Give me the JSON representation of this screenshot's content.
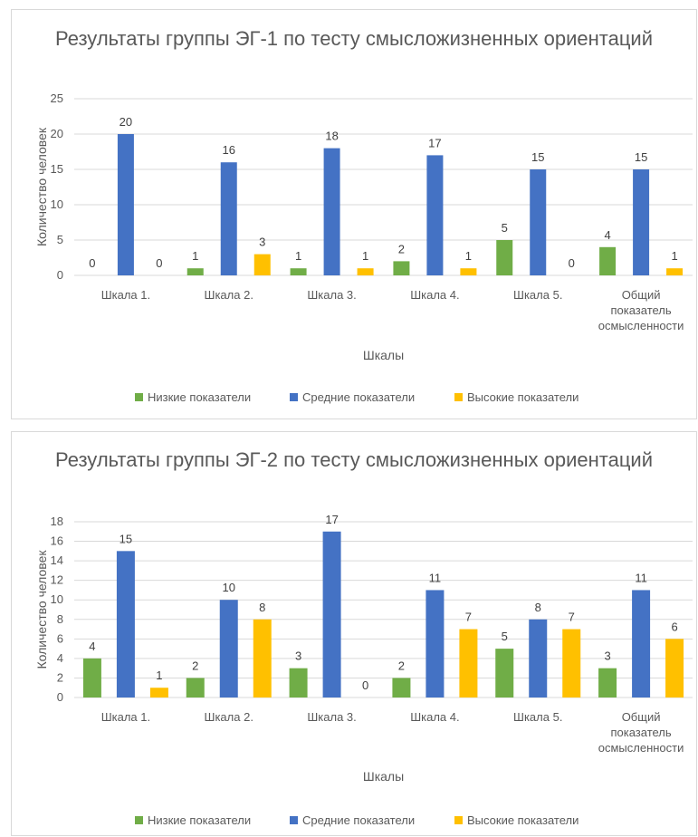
{
  "chart_data": [
    {
      "type": "bar",
      "title": "Результаты группы ЭГ-1 по тесту смысложизненных ориентаций",
      "xlabel": "Шкалы",
      "ylabel": "Количество человек",
      "categories": [
        [
          "Шкала 1."
        ],
        [
          "Шкала 2."
        ],
        [
          "Шкала 3."
        ],
        [
          "Шкала 4."
        ],
        [
          "Шкала 5."
        ],
        [
          "Общий",
          "показатель",
          "осмысленности"
        ]
      ],
      "yticks": [
        "0",
        "5",
        "10",
        "15",
        "20",
        "25"
      ],
      "ylim": [
        0,
        25
      ],
      "grid": true,
      "legend_position": "bottom",
      "series": [
        {
          "name": "Низкие показатели",
          "color": "#70AD47",
          "values": [
            0,
            1,
            1,
            2,
            5,
            4
          ]
        },
        {
          "name": "Средние показатели",
          "color": "#4472C4",
          "values": [
            20,
            16,
            18,
            17,
            15,
            15
          ]
        },
        {
          "name": "Высокие показатели",
          "color": "#FFC000",
          "values": [
            0,
            3,
            1,
            1,
            0,
            1
          ]
        }
      ]
    },
    {
      "type": "bar",
      "title": "Результаты группы ЭГ-2 по тесту смысложизненных ориентаций",
      "xlabel": "Шкалы",
      "ylabel": "Количество человек",
      "categories": [
        [
          "Шкала 1."
        ],
        [
          "Шкала 2."
        ],
        [
          "Шкала 3."
        ],
        [
          "Шкала 4."
        ],
        [
          "Шкала 5."
        ],
        [
          "Общий",
          "показатель",
          "осмысленности"
        ]
      ],
      "yticks": [
        "0",
        "2",
        "4",
        "6",
        "8",
        "10",
        "12",
        "14",
        "16",
        "18"
      ],
      "ylim": [
        0,
        18
      ],
      "grid": true,
      "legend_position": "bottom",
      "series": [
        {
          "name": "Низкие показатели",
          "color": "#70AD47",
          "values": [
            4,
            2,
            3,
            2,
            5,
            3
          ]
        },
        {
          "name": "Средние показатели",
          "color": "#4472C4",
          "values": [
            15,
            10,
            17,
            11,
            8,
            11
          ]
        },
        {
          "name": "Высокие показатели",
          "color": "#FFC000",
          "values": [
            1,
            8,
            0,
            7,
            7,
            6
          ]
        }
      ]
    }
  ]
}
